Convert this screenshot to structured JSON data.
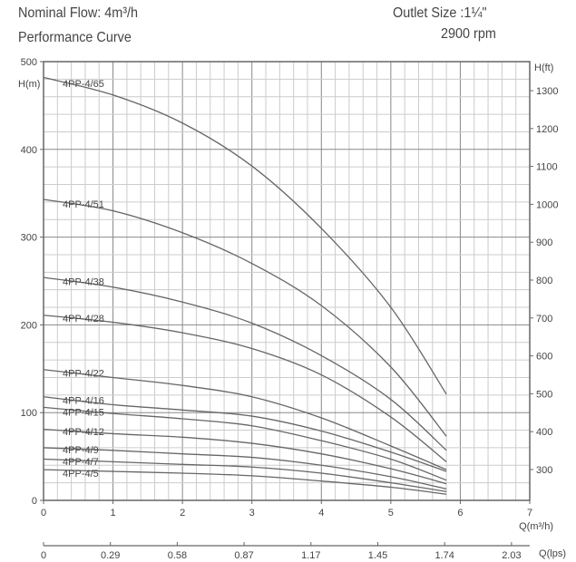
{
  "header": {
    "nominal_flow": "Nominal Flow: 4m³/h",
    "title": "Performance Curve",
    "outlet": "Outlet Size :1¼\"",
    "speed": "2900 rpm"
  },
  "chart_data": {
    "type": "line",
    "title": "Performance Curve",
    "xlabel": "Q(m³/h)",
    "ylabel": "H(m)",
    "y2label": "H(ft)",
    "x2label": "Q(lps)",
    "xlim": [
      0,
      7
    ],
    "ylim": [
      0,
      500
    ],
    "x_ticks": [
      "0",
      "1",
      "2",
      "3",
      "4",
      "5",
      "6",
      "7"
    ],
    "y_ticks": [
      "0",
      "100",
      "200",
      "300",
      "400",
      "500"
    ],
    "y2_ticks": [
      {
        "v": "1300",
        "ft": 1300
      },
      {
        "v": "1200",
        "ft": 1200
      },
      {
        "v": "1100",
        "ft": 1100
      },
      {
        "v": "1000",
        "ft": 1000
      },
      {
        "v": "900",
        "ft": 900
      },
      {
        "v": "800",
        "ft": 800
      },
      {
        "v": "700",
        "ft": 700
      },
      {
        "v": "600",
        "ft": 600
      },
      {
        "v": "500",
        "ft": 500
      },
      {
        "v": "400",
        "ft": 400
      },
      {
        "v": "300",
        "ft": 300
      }
    ],
    "x2_ticks": [
      "0",
      "0.29",
      "0.58",
      "0.87",
      "1.17",
      "1.45",
      "1.74",
      "2.03"
    ],
    "grid": true,
    "x": [
      0,
      1,
      2,
      3,
      4,
      5,
      5.8
    ],
    "series": [
      {
        "name": "4PP-4/65",
        "values": [
          482,
          462,
          430,
          381,
          310,
          220,
          121
        ]
      },
      {
        "name": "4PP-4/51",
        "values": [
          343,
          330,
          305,
          270,
          222,
          152,
          73
        ]
      },
      {
        "name": "4PP-4/38",
        "values": [
          254,
          243,
          226,
          202,
          165,
          115,
          57
        ]
      },
      {
        "name": "4PP-4/28",
        "values": [
          211,
          203,
          191,
          173,
          143,
          95,
          44
        ]
      },
      {
        "name": "4PP-4/22",
        "values": [
          149,
          140,
          131,
          118,
          94,
          62,
          35
        ]
      },
      {
        "name": "4PP-4/16",
        "values": [
          118,
          109,
          103,
          96,
          79,
          55,
          33
        ]
      },
      {
        "name": "4PP-4/15",
        "values": [
          106,
          99,
          93,
          85,
          68,
          47,
          23
        ]
      },
      {
        "name": "4PP-4/12",
        "values": [
          81,
          76,
          72,
          65,
          53,
          36,
          19
        ]
      },
      {
        "name": "4PP-4/9",
        "values": [
          60,
          57,
          53,
          49,
          40,
          27,
          13
        ]
      },
      {
        "name": "4PP-4/7",
        "values": [
          47,
          44,
          41,
          38,
          31,
          20,
          10
        ]
      },
      {
        "name": "4PP-4/5",
        "values": [
          35,
          33,
          31,
          28,
          22,
          15,
          7
        ]
      }
    ]
  }
}
